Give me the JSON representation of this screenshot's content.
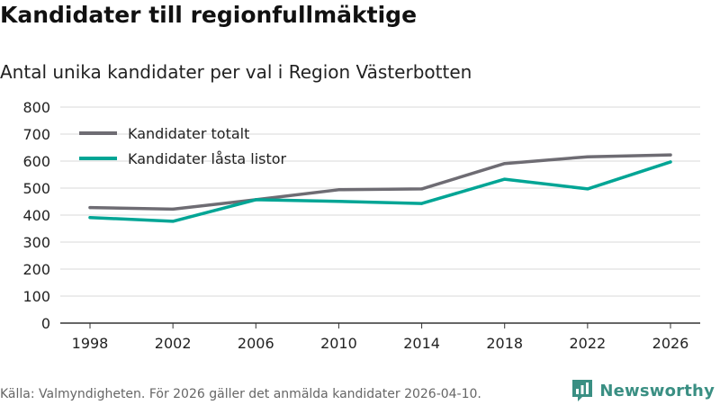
{
  "header": {
    "title": "Kandidater till regionfullmäktige",
    "subtitle": "Antal unika kandidater per val i Region Västerbotten"
  },
  "footer": {
    "source": "Källa: Valmyndigheten. För 2026 gäller det anmälda kandidater 2026-04-10.",
    "brand": "Newsworthy"
  },
  "colors": {
    "totalt": "#6e6c73",
    "lasta": "#00a595",
    "grid": "#d9d9d9",
    "brand": "#3a8f83"
  },
  "chart_data": {
    "type": "line",
    "title": "Kandidater till regionfullmäktige",
    "subtitle": "Antal unika kandidater per val i Region Västerbotten",
    "xlabel": "",
    "ylabel": "",
    "categories": [
      "1998",
      "2002",
      "2006",
      "2010",
      "2014",
      "2018",
      "2022",
      "2026"
    ],
    "ylim": [
      0,
      800
    ],
    "yticks": [
      "0",
      "100",
      "200",
      "300",
      "400",
      "500",
      "600",
      "700",
      "800"
    ],
    "legend_position": "top-left",
    "grid": true,
    "series": [
      {
        "name": "Kandidater totalt",
        "values": [
          428,
          422,
          457,
          494,
          497,
          591,
          616,
          623
        ]
      },
      {
        "name": "Kandidater låsta listor",
        "values": [
          391,
          377,
          457,
          451,
          443,
          533,
          497,
          597
        ]
      }
    ]
  }
}
